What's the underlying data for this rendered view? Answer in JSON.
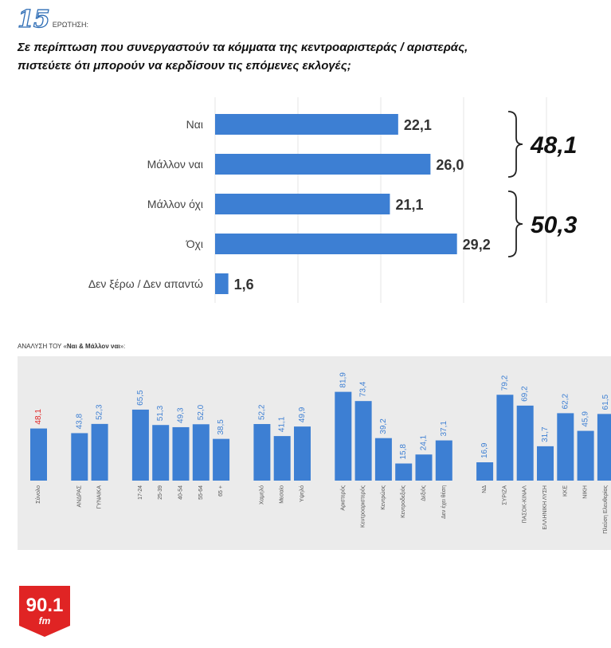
{
  "question": {
    "number": "15",
    "label": "ΕΡΩΤΗΣΗ:",
    "text_line1": "Σε περίπτωση που συνεργαστούν τα κόμματα της κεντροαριστεράς / αριστεράς,",
    "text_line2": "πιστεύετε ότι μπορούν να κερδίσουν τις επόμενες εκλογές;"
  },
  "chart_data": [
    {
      "type": "bar",
      "orientation": "horizontal",
      "categories": [
        "Ναι",
        "Μάλλον ναι",
        "Μάλλον όχι",
        "Όχι",
        "Δεν ξέρω / Δεν απαντώ"
      ],
      "values": [
        22.1,
        26.0,
        21.1,
        29.2,
        1.6
      ],
      "value_labels": [
        "22,1",
        "26,0",
        "21,1",
        "29,2",
        "1,6"
      ],
      "xlim": [
        0,
        40
      ],
      "grid": true,
      "color": "#3d7fd3",
      "groups": [
        {
          "label": "48,1",
          "from": 0,
          "to": 1
        },
        {
          "label": "50,3",
          "from": 2,
          "to": 3
        }
      ]
    },
    {
      "type": "bar",
      "title_prefix": "ΑΝΑΛΥΣΗ ΤΟΥ «",
      "title_bold": "Ναι & Μάλλον ναι",
      "title_suffix": "»:",
      "ylim": [
        0,
        100
      ],
      "color": "#3d7fd3",
      "highlight_color": "#e02424",
      "groups": [
        {
          "bars": [
            {
              "label": "Σύνολο",
              "value": 48.1,
              "display": "48,1",
              "highlight": true
            }
          ]
        },
        {
          "bars": [
            {
              "label": "ΑΝΔΡΑΣ",
              "value": 43.8,
              "display": "43,8"
            },
            {
              "label": "ΓΥΝΑΙΚΑ",
              "value": 52.3,
              "display": "52,3"
            }
          ]
        },
        {
          "bars": [
            {
              "label": "17-24",
              "value": 65.5,
              "display": "65,5"
            },
            {
              "label": "25-39",
              "value": 51.3,
              "display": "51,3"
            },
            {
              "label": "40-54",
              "value": 49.3,
              "display": "49,3"
            },
            {
              "label": "55-64",
              "value": 52.0,
              "display": "52,0"
            },
            {
              "label": "65 +",
              "value": 38.5,
              "display": "38,5"
            }
          ]
        },
        {
          "bars": [
            {
              "label": "Χαμηλό",
              "value": 52.2,
              "display": "52,2"
            },
            {
              "label": "Μεσαίο",
              "value": 41.1,
              "display": "41,1"
            },
            {
              "label": "Υψηλό",
              "value": 49.9,
              "display": "49,9"
            }
          ]
        },
        {
          "bars": [
            {
              "label": "Αριστερός",
              "value": 81.9,
              "display": "81,9"
            },
            {
              "label": "Κεντροαριστερός",
              "value": 73.4,
              "display": "73,4"
            },
            {
              "label": "Κεντρώος",
              "value": 39.2,
              "display": "39,2"
            },
            {
              "label": "Κεντροδεξιός",
              "value": 15.8,
              "display": "15,8"
            },
            {
              "label": "Δεξιός",
              "value": 24.1,
              "display": "24,1"
            },
            {
              "label": "Δεν έχει θέση",
              "value": 37.1,
              "display": "37,1"
            }
          ]
        },
        {
          "bars": [
            {
              "label": "ΝΔ",
              "value": 16.9,
              "display": "16,9"
            },
            {
              "label": "ΣΥΡΙΖΑ",
              "value": 79.2,
              "display": "79,2"
            },
            {
              "label": "ΠΑΣΟΚ-ΚΙΝΑΛ",
              "value": 69.2,
              "display": "69,2"
            },
            {
              "label": "ΕΛΛΗΝΙΚΗ ΛΥΣΗ",
              "value": 31.7,
              "display": "31,7"
            },
            {
              "label": "ΚΚΕ",
              "value": 62.2,
              "display": "62,2"
            },
            {
              "label": "ΝΙΚΗ",
              "value": 45.9,
              "display": "45,9"
            },
            {
              "label": "Πλεύση Ελευθερίας",
              "value": 61.5,
              "display": "61,5"
            }
          ]
        }
      ]
    }
  ],
  "logo": {
    "text": "90.1",
    "sub": "fm",
    "color": "#e02424"
  }
}
